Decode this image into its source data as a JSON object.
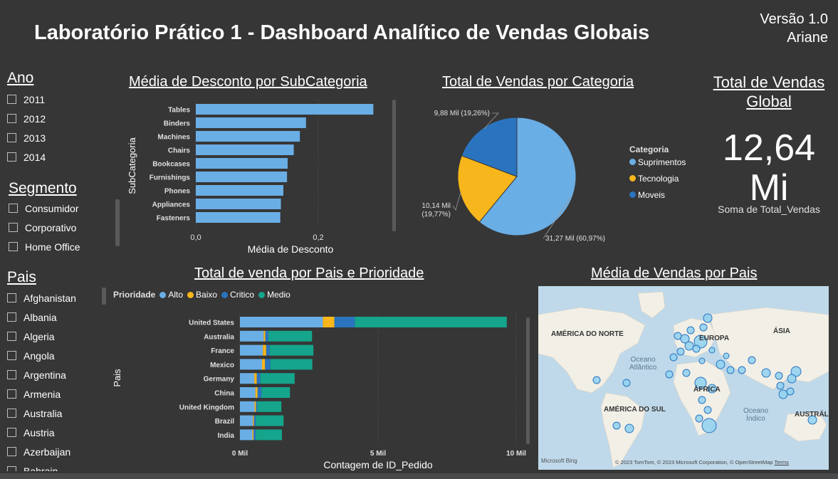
{
  "header": {
    "title": "Laboratório Prático 1 - Dashboard Analítico de Vendas Globais",
    "version": "Versão 1.0",
    "author": "Ariane"
  },
  "slicers": {
    "ano": {
      "title": "Ano",
      "items": [
        "2011",
        "2012",
        "2013",
        "2014"
      ]
    },
    "segmento": {
      "title": "Segmento",
      "items": [
        "Consumidor",
        "Corporativo",
        "Home Office"
      ]
    },
    "pais": {
      "title": "Pais",
      "items": [
        "Afghanistan",
        "Albania",
        "Algeria",
        "Angola",
        "Argentina",
        "Armenia",
        "Australia",
        "Austria",
        "Azerbaijan",
        "Bahrain"
      ]
    }
  },
  "discount_chart": {
    "title": "Média de Desconto por SubCategoria",
    "chart_data": {
      "type": "bar",
      "categories": [
        "Tables",
        "Binders",
        "Machines",
        "Chairs",
        "Bookcases",
        "Furnishings",
        "Phones",
        "Appliances",
        "Fasteners"
      ],
      "values": [
        0.29,
        0.18,
        0.17,
        0.16,
        0.15,
        0.149,
        0.143,
        0.139,
        0.138
      ],
      "xlabel": "Média de Desconto",
      "ylabel": "SubCategoria",
      "xticks": [
        "0,0",
        "0,2"
      ],
      "xlim": [
        0,
        0.3
      ]
    }
  },
  "category_chart": {
    "title": "Total de Vendas por Categoria",
    "legend_title": "Categoria",
    "chart_data": {
      "type": "pie",
      "labels": [
        "Suprimentos",
        "Tecnologia",
        "Moveis"
      ],
      "values": [
        60.97,
        19.77,
        19.26
      ],
      "colors": [
        "#6aaee6",
        "#f7b61b",
        "#2a74bf"
      ],
      "data_labels": [
        "31,27 Mil (60,97%)",
        "10,14 Mil (19,77%)",
        "9,88 Mil (19,26%)"
      ],
      "data_label_lines": [
        [
          "31,27 Mil (60,97%)"
        ],
        [
          "10,14 Mil",
          "(19,77%)"
        ],
        [
          "9,88 Mil (19,26%)"
        ]
      ]
    }
  },
  "kpi": {
    "title_line1": "Total de Vendas",
    "title_line2": "Global",
    "value_line1": "12,64",
    "value_line2": "Mi",
    "caption": "Soma de Total_Vendas"
  },
  "country_chart": {
    "title": "Total de venda por Pais e Prioridade",
    "legend_title": "Prioridade",
    "chart_data": {
      "type": "bar",
      "stacked": true,
      "categories": [
        "United States",
        "Australia",
        "France",
        "Mexico",
        "Germany",
        "China",
        "United Kingdom",
        "Brazil",
        "India"
      ],
      "series": [
        {
          "name": "Alto",
          "color": "#6aaee6",
          "values": [
            3000,
            860,
            830,
            800,
            520,
            560,
            530,
            470,
            450
          ]
        },
        {
          "name": "Baixo",
          "color": "#f7b61b",
          "values": [
            420,
            60,
            120,
            110,
            90,
            80,
            50,
            40,
            40
          ]
        },
        {
          "name": "Critico",
          "color": "#2a74bf",
          "values": [
            740,
            110,
            130,
            190,
            130,
            140,
            50,
            60,
            80
          ]
        },
        {
          "name": "Medio",
          "color": "#15a58c",
          "values": [
            5500,
            1580,
            1580,
            1520,
            1240,
            1030,
            870,
            1010,
            950
          ]
        }
      ],
      "xlabel": "Contagem de ID_Pedido",
      "ylabel": "Pais",
      "xticks": [
        "0 Mil",
        "5 Mil",
        "10 Mil"
      ],
      "xlim": [
        0,
        10000
      ]
    }
  },
  "map_chart": {
    "title": "Média de Vendas por Pais",
    "labels": [
      "AMÉRICA DO NORTE",
      "EUROPA",
      "ÁSIA",
      "ÁFRICA",
      "AMÉRICA DO SUL",
      "AUSTRÁL",
      "Oceano",
      "Atlântico",
      "Oceano",
      "Índico"
    ],
    "brand": "Microsoft Bing",
    "copyright": "© 2023 TomTom, © 2023 Microsoft Corporation, © OpenStreetMap",
    "terms": "Terms"
  }
}
